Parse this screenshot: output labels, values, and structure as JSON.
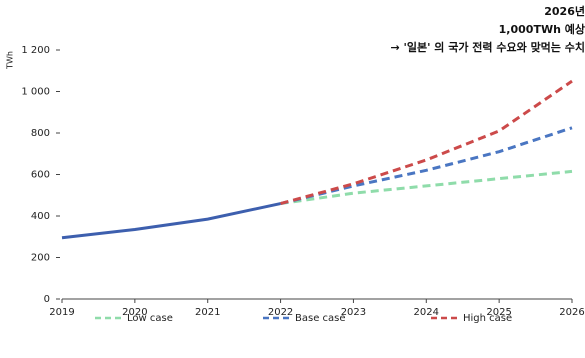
{
  "chart_data": {
    "type": "line",
    "annotations": [
      "2026년",
      "1,000TWh 예상",
      "→ '일본' 의 국가 전력 수요와 맞먹는 수치"
    ],
    "y_label": "TWh",
    "categories": [
      "2019",
      "2020",
      "2021",
      "2022",
      "2023",
      "2024",
      "2025",
      "2026"
    ],
    "series": [
      {
        "color": "#3d5fae",
        "dashed": false,
        "values": [
          295,
          335,
          385,
          460,
          null,
          null,
          null,
          null
        ]
      },
      {
        "name": "Low case",
        "color": "#8fdcaa",
        "dashed": true,
        "values": [
          null,
          null,
          null,
          460,
          510,
          545,
          580,
          615
        ]
      },
      {
        "name": "Base case",
        "color": "#4a76c2",
        "dashed": true,
        "values": [
          null,
          null,
          null,
          460,
          545,
          620,
          710,
          825
        ]
      },
      {
        "name": "High case",
        "color": "#cc4a4a",
        "dashed": true,
        "values": [
          null,
          null,
          null,
          460,
          555,
          670,
          810,
          1050
        ]
      }
    ],
    "ylim": [
      0,
      1200
    ],
    "yticks": [
      0,
      200,
      400,
      600,
      800,
      {
        "value": 1000,
        "label": "1 000"
      },
      {
        "value": 1200,
        "label": "1 200"
      }
    ],
    "grid": false
  }
}
